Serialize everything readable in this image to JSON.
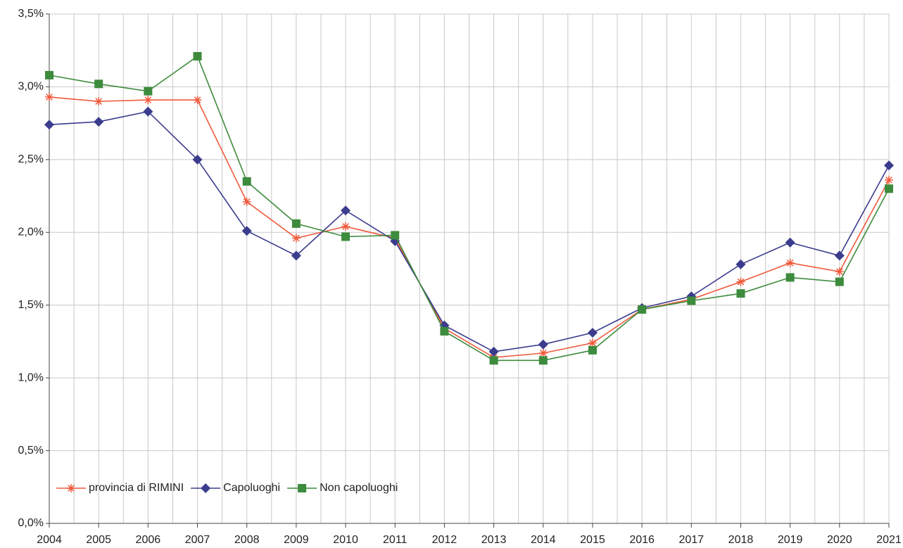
{
  "chart_data": {
    "type": "line",
    "categories": [
      "2004",
      "2005",
      "2006",
      "2007",
      "2008",
      "2009",
      "2010",
      "2011",
      "2012",
      "2013",
      "2014",
      "2015",
      "2016",
      "2017",
      "2018",
      "2019",
      "2020",
      "2021"
    ],
    "series": [
      {
        "name": "provincia di RIMINI",
        "color": "#ef5a3c",
        "marker": "asterisk",
        "values": [
          2.93,
          2.9,
          2.91,
          2.91,
          2.21,
          1.96,
          2.04,
          1.96,
          1.34,
          1.14,
          1.17,
          1.24,
          1.47,
          1.54,
          1.66,
          1.79,
          1.73,
          2.36
        ]
      },
      {
        "name": "Capoluoghi",
        "color": "#3c3c8e",
        "marker": "diamond",
        "values": [
          2.74,
          2.76,
          2.83,
          2.5,
          2.01,
          1.84,
          2.15,
          1.94,
          1.36,
          1.18,
          1.23,
          1.31,
          1.48,
          1.56,
          1.78,
          1.93,
          1.84,
          2.46
        ]
      },
      {
        "name": "Non capoluoghi",
        "color": "#3d8b3d",
        "marker": "square",
        "values": [
          3.08,
          3.02,
          2.97,
          3.21,
          2.35,
          2.06,
          1.97,
          1.98,
          1.32,
          1.12,
          1.12,
          1.19,
          1.47,
          1.53,
          1.58,
          1.69,
          1.66,
          2.3
        ]
      }
    ],
    "ylim": [
      0,
      3.5
    ],
    "yticks": [
      {
        "value": 0,
        "label": "0,0%"
      },
      {
        "value": 0.5,
        "label": "0,5%"
      },
      {
        "value": 1,
        "label": "1,0%"
      },
      {
        "value": 1.5,
        "label": "1,5%"
      },
      {
        "value": 2,
        "label": "2,0%"
      },
      {
        "value": 2.5,
        "label": "2,5%"
      },
      {
        "value": 3,
        "label": "3,0%"
      },
      {
        "value": 3.5,
        "label": "3,5%"
      }
    ],
    "grid": true,
    "legend": "lower left"
  }
}
